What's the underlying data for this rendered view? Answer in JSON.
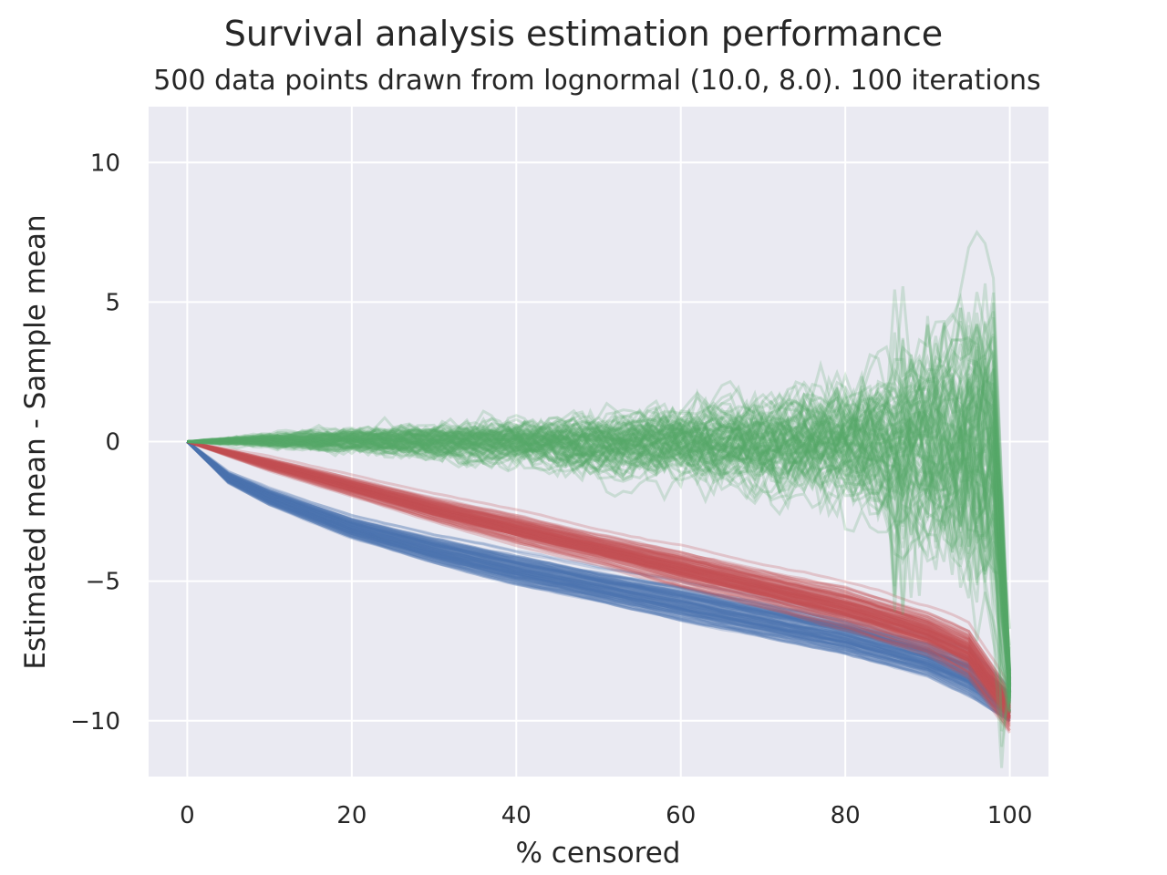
{
  "chart_data": {
    "type": "line",
    "title": "Survival analysis estimation performance",
    "subtitle": "500 data points drawn from lognormal (10.0, 8.0). 100 iterations",
    "xlabel": "% censored",
    "ylabel": "Estimated mean - Sample mean",
    "xlim": [
      -4.7,
      104.7
    ],
    "ylim": [
      -12,
      12
    ],
    "x_ticks": [
      0,
      20,
      40,
      60,
      80,
      100
    ],
    "x_tick_labels": [
      "0",
      "20",
      "40",
      "60",
      "80",
      "100"
    ],
    "y_ticks": [
      -10,
      -5,
      0,
      5,
      10
    ],
    "y_tick_labels": [
      "−10",
      "−5",
      "0",
      "5",
      "10"
    ],
    "grid": true,
    "background": "#eaeaf2",
    "iterations": 100,
    "series": [
      {
        "color": "#4c72b0",
        "alpha": 0.25,
        "x": [
          0,
          5,
          10,
          20,
          30,
          40,
          50,
          60,
          70,
          80,
          90,
          95,
          100
        ],
        "y": [
          0,
          -1.3,
          -2.0,
          -3.1,
          -3.9,
          -4.6,
          -5.2,
          -5.8,
          -6.4,
          -7.0,
          -7.8,
          -8.4,
          -9.5
        ],
        "spread": [
          0,
          0.1,
          0.15,
          0.2,
          0.25,
          0.3,
          0.3,
          0.35,
          0.35,
          0.35,
          0.35,
          0.4,
          0.3
        ]
      },
      {
        "color": "#c44e52",
        "alpha": 0.25,
        "x": [
          0,
          5,
          10,
          20,
          30,
          40,
          50,
          60,
          70,
          80,
          90,
          95,
          100
        ],
        "y": [
          0,
          -0.4,
          -0.8,
          -1.6,
          -2.4,
          -3.1,
          -3.8,
          -4.5,
          -5.2,
          -5.9,
          -6.8,
          -7.5,
          -9.6
        ],
        "spread": [
          0,
          0.05,
          0.1,
          0.15,
          0.2,
          0.25,
          0.25,
          0.3,
          0.3,
          0.35,
          0.35,
          0.4,
          0.35
        ]
      },
      {
        "color": "#55a868",
        "alpha": 0.22,
        "x": [
          0,
          10,
          20,
          30,
          40,
          50,
          60,
          70,
          75,
          80,
          85,
          90,
          95,
          98,
          100
        ],
        "y": [
          0,
          0.05,
          0.05,
          0.05,
          0.05,
          0.0,
          0.0,
          0.0,
          0.0,
          0.05,
          0.1,
          0.2,
          0.3,
          0.5,
          -8.8
        ],
        "spread": [
          0,
          0.15,
          0.25,
          0.35,
          0.45,
          0.6,
          0.75,
          0.95,
          1.1,
          1.3,
          1.6,
          2.1,
          2.9,
          3.4,
          0.4
        ]
      }
    ]
  }
}
